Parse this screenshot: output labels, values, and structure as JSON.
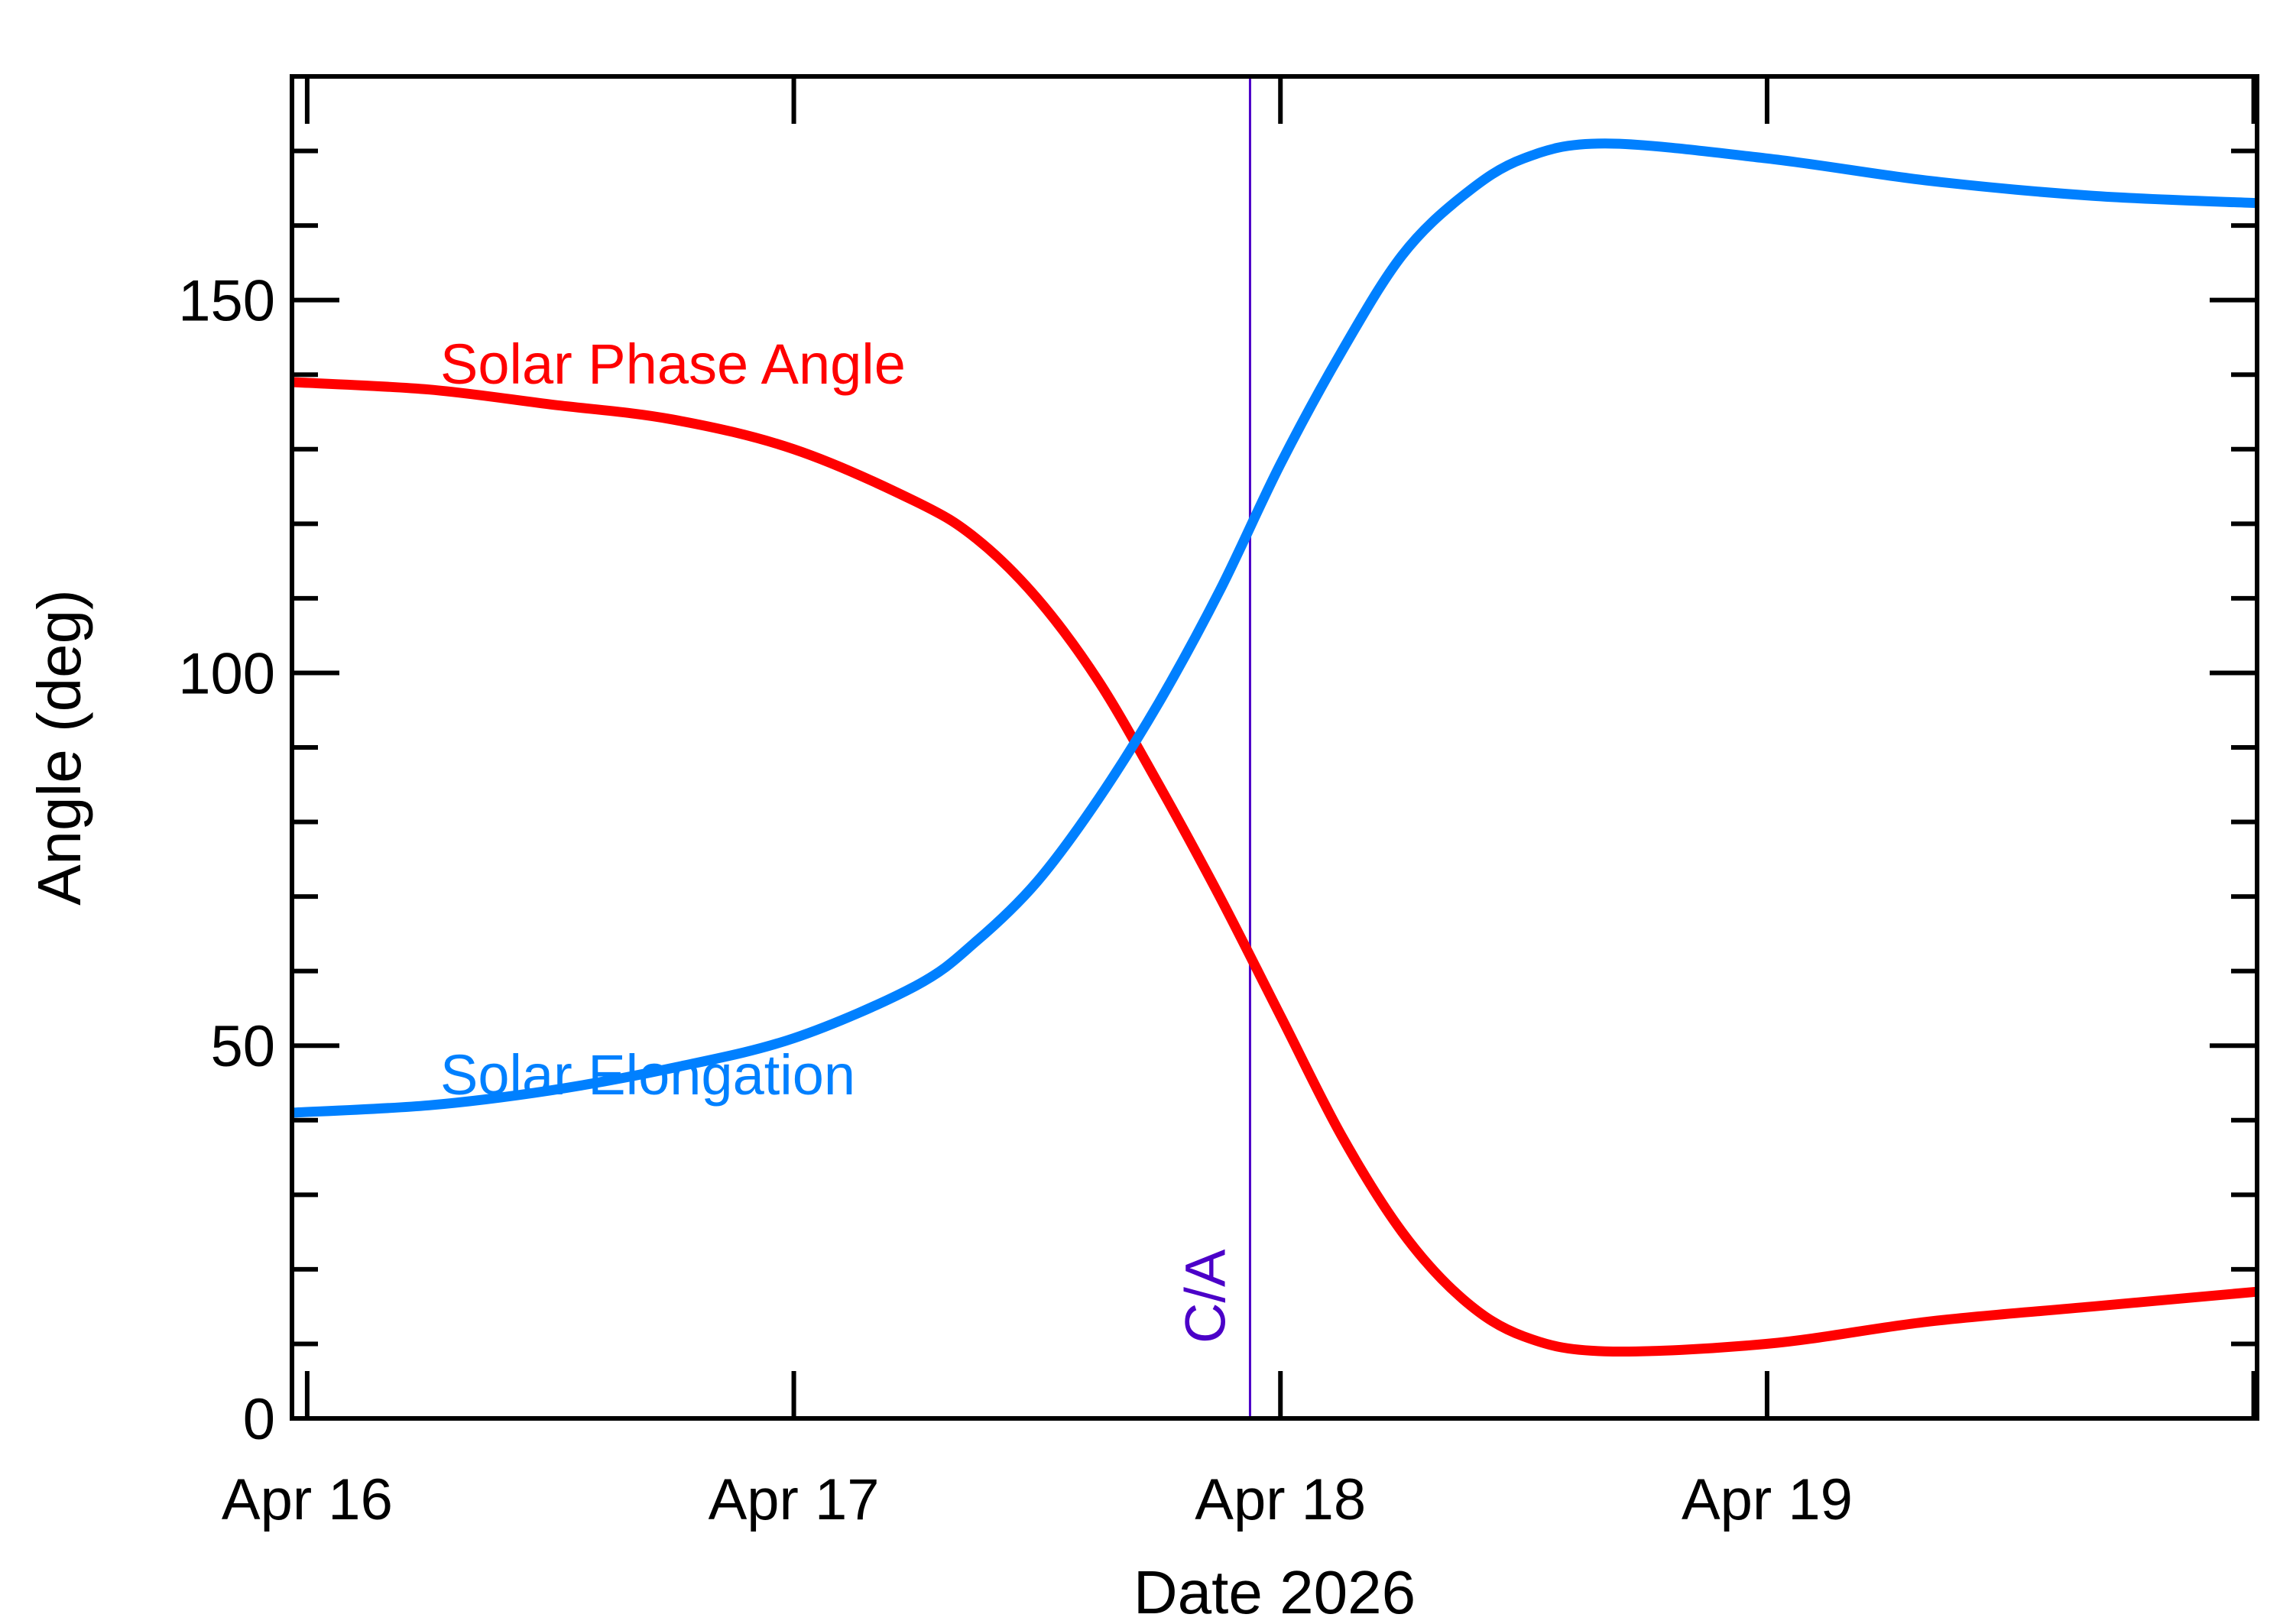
{
  "chart_data": {
    "type": "line",
    "xlabel": "Date 2026",
    "ylabel": "Angle (deg)",
    "x_tick_labels": [
      "Apr 16",
      "Apr 17",
      "Apr 18",
      "Apr 19"
    ],
    "y_tick_labels": [
      "0",
      "50",
      "100",
      "150"
    ],
    "xlim": [
      "2026-04-15 23:15",
      "2026-04-20 00:10"
    ],
    "ylim": [
      0,
      180
    ],
    "grid": false,
    "closest_approach": {
      "label": "C/A",
      "x": "2026-04-17 22:30",
      "color": "#4b00c8"
    },
    "series": [
      {
        "name": "Solar Phase Angle",
        "color": "#ff0000",
        "x": [
          "2026-04-15 23:15",
          "2026-04-16 06:00",
          "2026-04-16 12:00",
          "2026-04-16 18:00",
          "2026-04-17 00:00",
          "2026-04-17 06:00",
          "2026-04-17 09:00",
          "2026-04-17 12:00",
          "2026-04-17 15:00",
          "2026-04-17 18:00",
          "2026-04-17 21:00",
          "2026-04-18 00:00",
          "2026-04-18 03:00",
          "2026-04-18 06:00",
          "2026-04-18 09:00",
          "2026-04-18 12:00",
          "2026-04-18 16:00",
          "2026-04-19 00:00",
          "2026-04-19 08:00",
          "2026-04-19 16:00",
          "2026-04-20 00:10"
        ],
        "y": [
          139,
          138,
          136,
          134,
          130,
          123,
          118,
          110,
          99,
          85,
          70,
          54,
          38,
          25,
          16,
          11,
          9,
          10,
          13,
          15,
          17
        ]
      },
      {
        "name": "Solar Elongation",
        "color": "#0080ff",
        "x": [
          "2026-04-15 23:15",
          "2026-04-16 06:00",
          "2026-04-16 12:00",
          "2026-04-16 18:00",
          "2026-04-17 00:00",
          "2026-04-17 06:00",
          "2026-04-17 09:00",
          "2026-04-17 12:00",
          "2026-04-17 15:00",
          "2026-04-17 18:00",
          "2026-04-17 21:00",
          "2026-04-18 00:00",
          "2026-04-18 03:00",
          "2026-04-18 06:00",
          "2026-04-18 09:00",
          "2026-04-18 12:00",
          "2026-04-18 16:00",
          "2026-04-19 00:00",
          "2026-04-19 08:00",
          "2026-04-19 16:00",
          "2026-04-20 00:10"
        ],
        "y": [
          41,
          42,
          44,
          47,
          51,
          58,
          64,
          72,
          83,
          96,
          111,
          128,
          143,
          156,
          164,
          169,
          171,
          169,
          166,
          164,
          163
        ]
      }
    ]
  }
}
